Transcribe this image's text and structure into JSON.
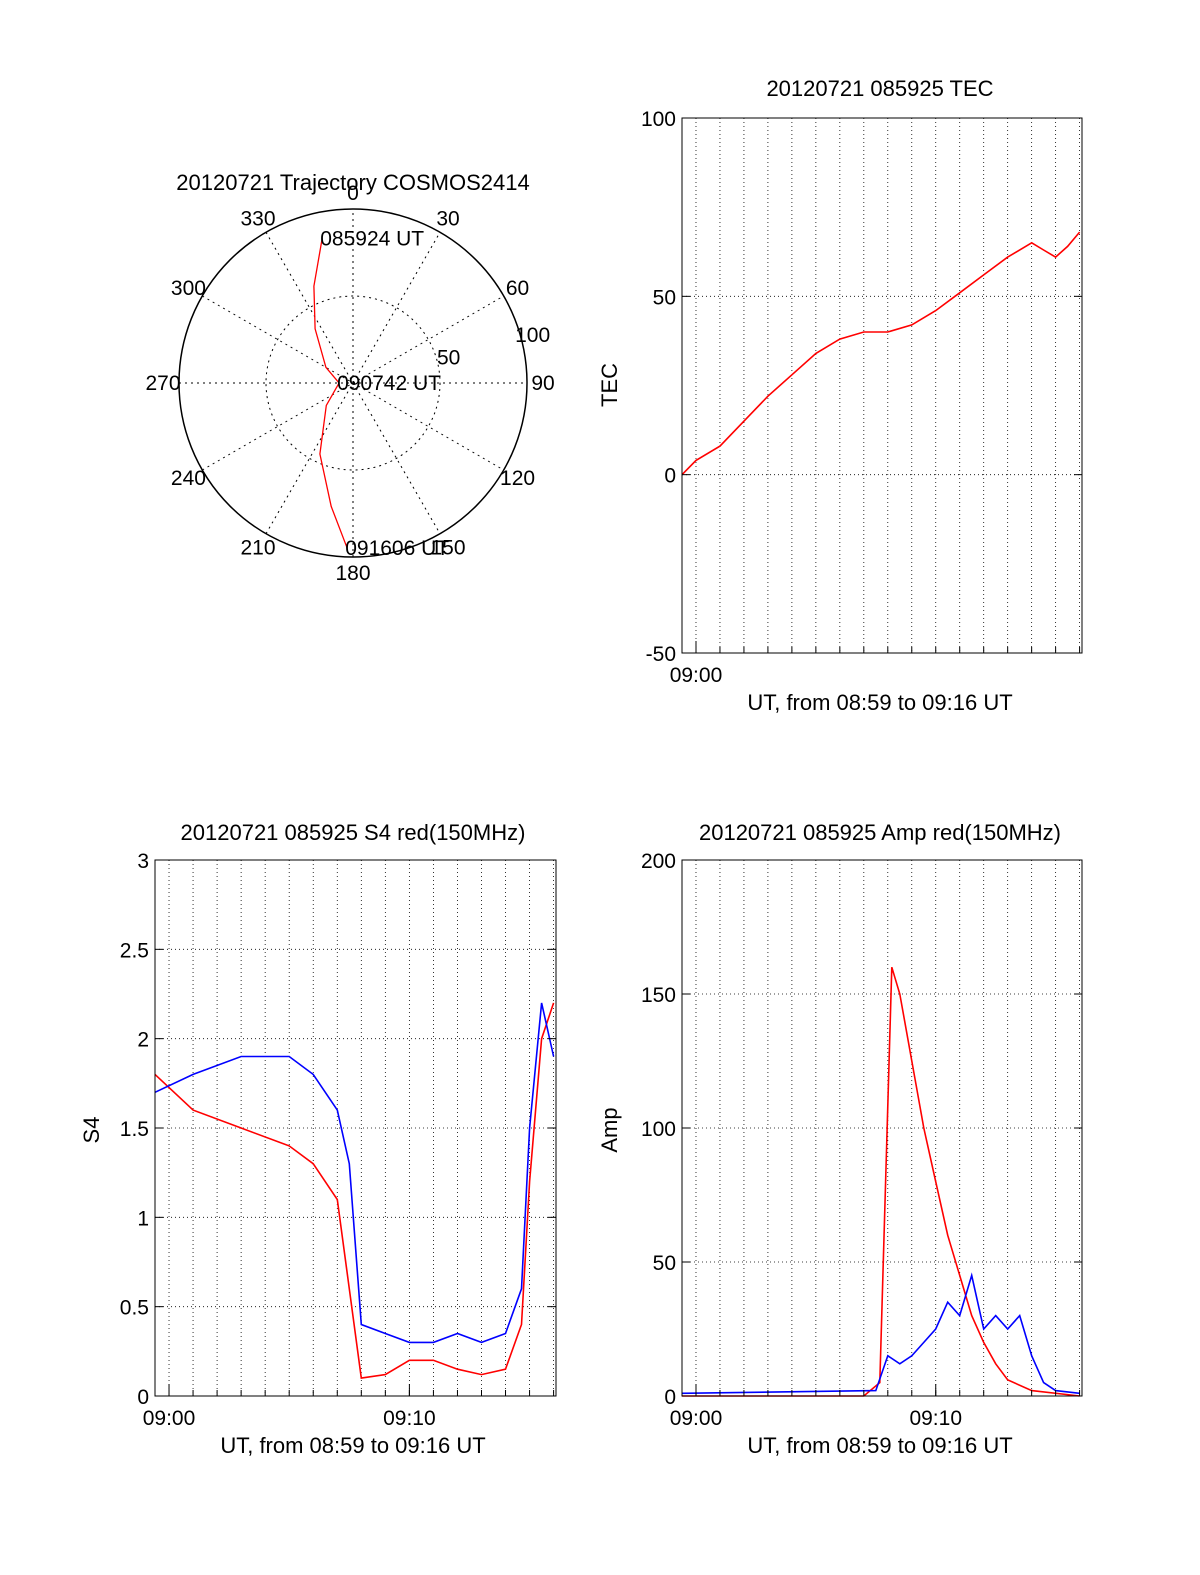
{
  "chart_data": [
    {
      "type": "polar",
      "title": "20120721 Trajectory COSMOS2414",
      "azimuth_labels": [
        "0",
        "30",
        "60",
        "90",
        "120",
        "150",
        "180",
        "210",
        "240",
        "270",
        "300",
        "330"
      ],
      "radius_labels": [
        "50",
        "100"
      ],
      "grid": true,
      "series": [
        {
          "color": "#ff0000",
          "points": [
            {
              "az": 348,
              "r": 85
            },
            {
              "az": 338,
              "r": 60
            },
            {
              "az": 325,
              "r": 38
            },
            {
              "az": 300,
              "r": 18
            },
            {
              "az": 270,
              "r": 8
            },
            {
              "az": 230,
              "r": 20
            },
            {
              "az": 205,
              "r": 45
            },
            {
              "az": 190,
              "r": 72
            },
            {
              "az": 182,
              "r": 95
            }
          ]
        }
      ],
      "annotations": [
        {
          "text": "085924 UT",
          "az": 348,
          "r": 85
        },
        {
          "text": "090742 UT",
          "az": 270,
          "r": 8
        },
        {
          "text": "091606 UT",
          "az": 182,
          "r": 95
        }
      ]
    },
    {
      "type": "line",
      "title": "20120721 085925 TEC",
      "xlabel": "UT, from 08:59 to 09:16 UT",
      "ylabel": "TEC",
      "xlim": [
        "08:59:25",
        "09:16:06"
      ],
      "ylim": [
        -50,
        100
      ],
      "xticks": [
        "09:00"
      ],
      "yticks": [
        -50,
        0,
        50,
        100
      ],
      "grid": true,
      "series": [
        {
          "color": "#ff0000",
          "x": [
            "08:59:25",
            "09:00:00",
            "09:01:00",
            "09:02:00",
            "09:03:00",
            "09:04:00",
            "09:05:00",
            "09:06:00",
            "09:07:00",
            "09:08:00",
            "09:09:00",
            "09:10:00",
            "09:11:00",
            "09:12:00",
            "09:13:00",
            "09:14:00",
            "09:14:30",
            "09:15:00",
            "09:15:30",
            "09:16:00"
          ],
          "y": [
            0,
            4,
            8,
            15,
            22,
            28,
            34,
            38,
            40,
            40,
            42,
            46,
            51,
            56,
            61,
            65,
            63,
            61,
            64,
            68
          ]
        }
      ]
    },
    {
      "type": "line",
      "title": "20120721 085925 S4 red(150MHz)",
      "xlabel": "UT, from 08:59 to 09:16 UT",
      "ylabel": "S4",
      "xlim": [
        "08:59:25",
        "09:16:06"
      ],
      "ylim": [
        0,
        3
      ],
      "xticks": [
        "09:00",
        "09:10"
      ],
      "yticks": [
        0,
        0.5,
        1,
        1.5,
        2,
        2.5,
        3
      ],
      "grid": true,
      "series": [
        {
          "color": "#ff0000",
          "x": [
            "08:59:25",
            "09:01:00",
            "09:03:00",
            "09:05:00",
            "09:06:00",
            "09:07:00",
            "09:07:30",
            "09:08:00",
            "09:09:00",
            "09:10:00",
            "09:11:00",
            "09:12:00",
            "09:13:00",
            "09:14:00",
            "09:14:40",
            "09:15:00",
            "09:15:30",
            "09:16:00"
          ],
          "y": [
            1.8,
            1.6,
            1.5,
            1.4,
            1.3,
            1.1,
            0.6,
            0.1,
            0.12,
            0.2,
            0.2,
            0.15,
            0.12,
            0.15,
            0.4,
            1.2,
            2.0,
            2.2
          ]
        },
        {
          "color": "#0000ff",
          "x": [
            "08:59:25",
            "09:01:00",
            "09:03:00",
            "09:05:00",
            "09:06:00",
            "09:07:00",
            "09:07:30",
            "09:08:00",
            "09:09:00",
            "09:10:00",
            "09:11:00",
            "09:12:00",
            "09:13:00",
            "09:14:00",
            "09:14:40",
            "09:15:00",
            "09:15:30",
            "09:16:00"
          ],
          "y": [
            1.7,
            1.8,
            1.9,
            1.9,
            1.8,
            1.6,
            1.3,
            0.4,
            0.35,
            0.3,
            0.3,
            0.35,
            0.3,
            0.35,
            0.6,
            1.5,
            2.2,
            1.9
          ]
        }
      ]
    },
    {
      "type": "line",
      "title": "20120721 085925 Amp red(150MHz)",
      "xlabel": "UT, from 08:59 to 09:16 UT",
      "ylabel": "Amp",
      "xlim": [
        "08:59:25",
        "09:16:06"
      ],
      "ylim": [
        0,
        200
      ],
      "xticks": [
        "09:00",
        "09:10"
      ],
      "yticks": [
        0,
        50,
        100,
        150,
        200
      ],
      "grid": true,
      "series": [
        {
          "color": "#ff0000",
          "x": [
            "08:59:25",
            "09:07:00",
            "09:07:40",
            "09:08:10",
            "09:08:30",
            "09:09:00",
            "09:09:30",
            "09:10:00",
            "09:10:30",
            "09:11:00",
            "09:11:30",
            "09:12:00",
            "09:12:30",
            "09:13:00",
            "09:14:00",
            "09:16:00"
          ],
          "y": [
            0,
            0,
            5,
            160,
            150,
            125,
            100,
            80,
            60,
            45,
            30,
            20,
            12,
            6,
            2,
            0
          ]
        },
        {
          "color": "#0000ff",
          "x": [
            "08:59:25",
            "09:07:30",
            "09:08:00",
            "09:08:30",
            "09:09:00",
            "09:09:30",
            "09:10:00",
            "09:10:30",
            "09:11:00",
            "09:11:30",
            "09:12:00",
            "09:12:30",
            "09:13:00",
            "09:13:30",
            "09:14:00",
            "09:14:30",
            "09:15:00",
            "09:16:00"
          ],
          "y": [
            1,
            2,
            15,
            12,
            15,
            20,
            25,
            35,
            30,
            45,
            25,
            30,
            25,
            30,
            15,
            5,
            2,
            1
          ]
        }
      ]
    }
  ]
}
